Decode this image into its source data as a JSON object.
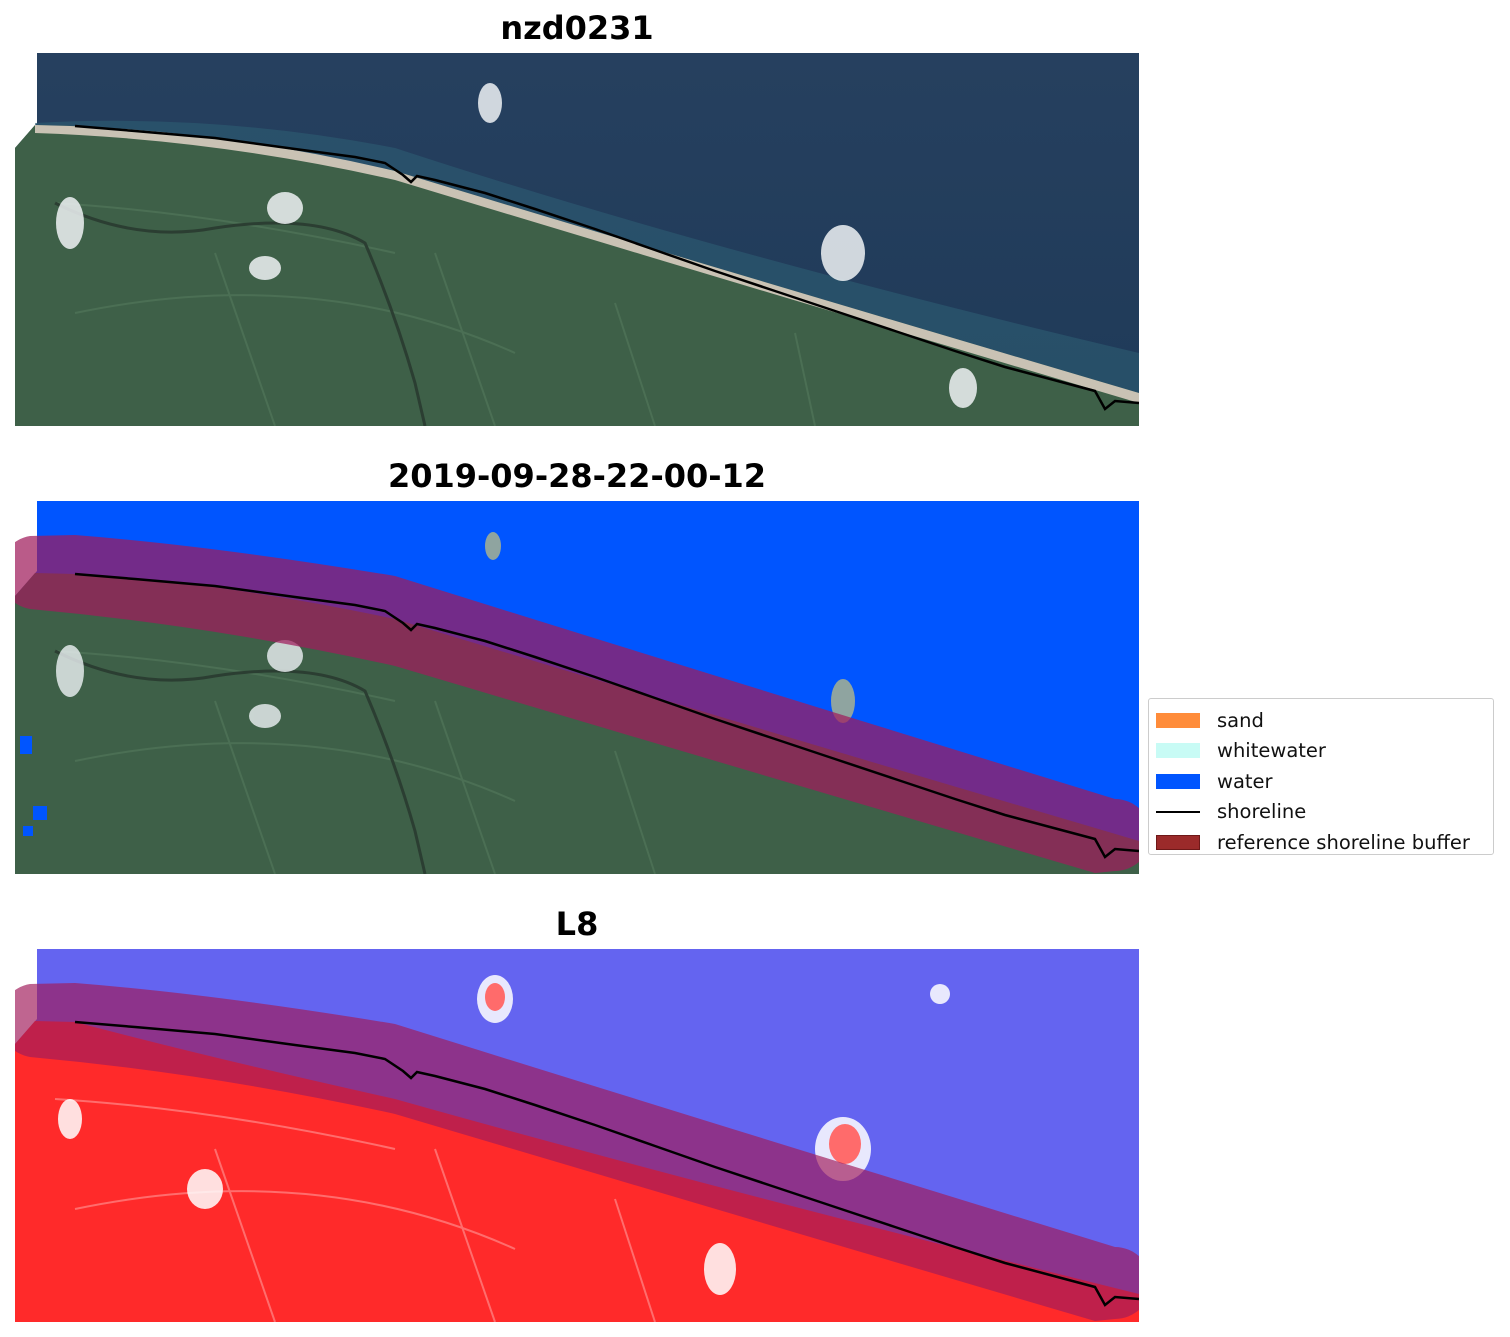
{
  "panels": [
    {
      "title": "nzd0231",
      "kind": "rgb"
    },
    {
      "title": "2019-09-28-22-00-12",
      "kind": "classified"
    },
    {
      "title": "L8",
      "kind": "index"
    }
  ],
  "legend": {
    "items": [
      {
        "label": "sand",
        "color": "#ff8c3a",
        "kind": "patch"
      },
      {
        "label": "whitewater",
        "color": "#c8fbf5",
        "kind": "patch"
      },
      {
        "label": "water",
        "color": "#0055ff",
        "kind": "patch"
      },
      {
        "label": "shoreline",
        "color": "#000000",
        "kind": "line"
      },
      {
        "label": "reference shoreline buffer",
        "color": "#9b2a2a",
        "kind": "patch"
      }
    ]
  },
  "colors": {
    "ocean_rgb": "#233f5e",
    "land_rgb": "#3e6048",
    "water_class": "#0055ff",
    "buffer": "#a01c5c",
    "index_water": "#6464f0",
    "index_land": "#ff2a2a"
  }
}
